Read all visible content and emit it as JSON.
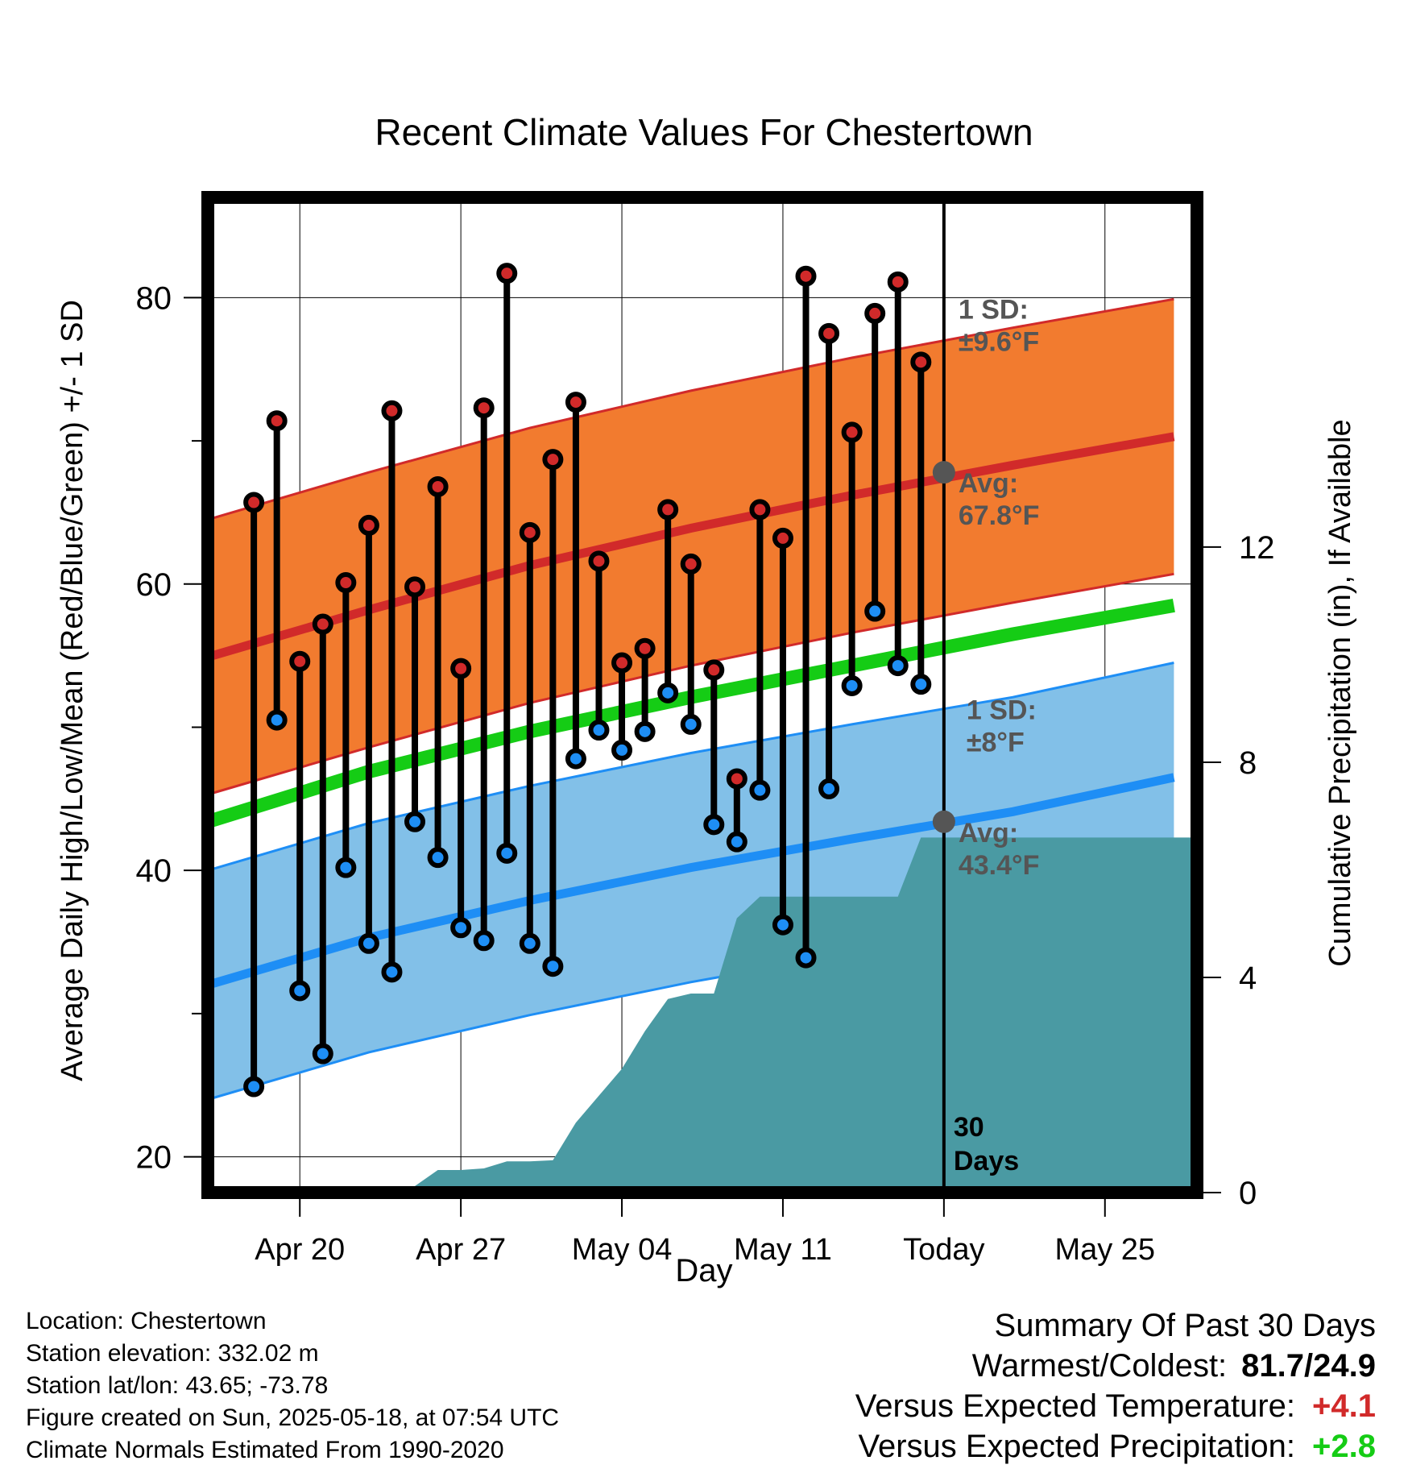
{
  "chart_data": {
    "type": "line",
    "title": "Recent Climate Values For Chestertown",
    "xlabel": "Day",
    "ylabel": "Average Daily High/Low/Mean (Red/Blue/Green) +/- 1 SD",
    "y2label": "Cumulative Precipitation (in), If Available",
    "ylim": [
      17.5,
      87
    ],
    "y2lim": [
      0,
      18.5
    ],
    "yticks": [
      20,
      40,
      60,
      80
    ],
    "y2ticks": [
      0,
      4,
      8,
      12
    ],
    "xlim": [
      "2025-04-16",
      "2025-05-29"
    ],
    "xticks": [
      {
        "date": "2025-04-20",
        "label": "Apr 20"
      },
      {
        "date": "2025-04-27",
        "label": "Apr 27"
      },
      {
        "date": "2025-05-04",
        "label": "May 04"
      },
      {
        "date": "2025-05-11",
        "label": "May 11"
      },
      {
        "date": "2025-05-18",
        "label": "Today"
      },
      {
        "date": "2025-05-25",
        "label": "May 25"
      }
    ],
    "grid": true,
    "today": "2025-05-18",
    "today_label": [
      "30",
      "Days"
    ],
    "colors": {
      "high_band": "#f27b2f",
      "high_avg": "#d12a2a",
      "low_band": "#82c0e8",
      "low_avg": "#1e8ef5",
      "mean_avg": "#15cc15",
      "precip": "#4a9aa3",
      "high_dot": "#d12a2a",
      "low_dot": "#1e8ef5",
      "marker": "#555555"
    },
    "normals": {
      "dates": [
        "2025-04-16",
        "2025-04-23",
        "2025-04-30",
        "2025-05-07",
        "2025-05-14",
        "2025-05-21",
        "2025-05-28"
      ],
      "high_avg": [
        54.9,
        58.2,
        61.3,
        63.9,
        66.2,
        68.3,
        70.3
      ],
      "low_avg": [
        32.0,
        35.3,
        37.9,
        40.2,
        42.2,
        44.1,
        46.5
      ],
      "mean_avg": [
        43.4,
        46.9,
        49.7,
        52.1,
        54.3,
        56.5,
        58.5
      ],
      "high_sd": 9.6,
      "low_sd": 8.0
    },
    "annotations": [
      {
        "lines": [
          "1 SD:",
          "±9.6°F"
        ],
        "series": "high"
      },
      {
        "lines": [
          "Avg:",
          "67.8°F"
        ],
        "series": "high"
      },
      {
        "lines": [
          "1 SD:",
          "±8°F"
        ],
        "series": "low"
      },
      {
        "lines": [
          "Avg:",
          "43.4°F"
        ],
        "series": "low"
      }
    ],
    "today_high_avg": 67.8,
    "today_low_avg": 43.4,
    "daily": {
      "dates": [
        "2025-04-18",
        "2025-04-19",
        "2025-04-20",
        "2025-04-21",
        "2025-04-22",
        "2025-04-23",
        "2025-04-24",
        "2025-04-25",
        "2025-04-26",
        "2025-04-27",
        "2025-04-28",
        "2025-04-29",
        "2025-04-30",
        "2025-05-01",
        "2025-05-02",
        "2025-05-03",
        "2025-05-04",
        "2025-05-05",
        "2025-05-06",
        "2025-05-07",
        "2025-05-08",
        "2025-05-09",
        "2025-05-10",
        "2025-05-11",
        "2025-05-12",
        "2025-05-13",
        "2025-05-14",
        "2025-05-15",
        "2025-05-16",
        "2025-05-17"
      ],
      "highs": [
        65.7,
        71.4,
        54.6,
        57.2,
        60.1,
        64.1,
        72.1,
        59.8,
        66.8,
        54.1,
        72.3,
        81.7,
        63.6,
        68.7,
        72.7,
        61.6,
        54.5,
        55.5,
        65.2,
        61.4,
        54.0,
        46.4,
        65.2,
        63.2,
        81.5,
        77.5,
        70.6,
        78.9,
        81.1,
        75.5
      ],
      "lows": [
        24.9,
        50.5,
        31.6,
        27.2,
        40.2,
        34.9,
        32.9,
        43.4,
        40.9,
        36.0,
        35.1,
        41.2,
        34.9,
        33.3,
        47.8,
        49.8,
        48.4,
        49.7,
        52.4,
        50.2,
        43.2,
        42.0,
        45.6,
        36.2,
        33.9,
        45.7,
        52.9,
        58.1,
        54.3,
        53.0
      ]
    },
    "precip": {
      "dates": [
        "2025-04-18",
        "2025-04-19",
        "2025-04-20",
        "2025-04-21",
        "2025-04-22",
        "2025-04-23",
        "2025-04-24",
        "2025-04-25",
        "2025-04-26",
        "2025-04-27",
        "2025-04-28",
        "2025-04-29",
        "2025-04-30",
        "2025-05-01",
        "2025-05-02",
        "2025-05-03",
        "2025-05-04",
        "2025-05-05",
        "2025-05-06",
        "2025-05-07",
        "2025-05-08",
        "2025-05-09",
        "2025-05-10",
        "2025-05-11",
        "2025-05-12",
        "2025-05-13",
        "2025-05-14",
        "2025-05-15",
        "2025-05-16",
        "2025-05-17",
        "2025-05-18",
        "2025-05-29"
      ],
      "cumulative": [
        0.0,
        0.0,
        0.0,
        0.1,
        0.1,
        0.1,
        0.12,
        0.12,
        0.42,
        0.42,
        0.45,
        0.58,
        0.58,
        0.6,
        1.3,
        1.8,
        2.3,
        3.0,
        3.6,
        3.7,
        3.7,
        5.1,
        5.5,
        5.5,
        5.5,
        5.5,
        5.5,
        5.5,
        5.5,
        6.6,
        6.6,
        6.6
      ]
    }
  },
  "info": {
    "location": "Location: Chestertown",
    "elevation": "Station elevation: 332.02 m",
    "latlon": "Station lat/lon: 43.65; -73.78",
    "created": "Figure created on Sun, 2025-05-18, at 07:54 UTC",
    "normals": "Climate Normals Estimated From 1990-2020"
  },
  "summary": {
    "title": "Summary Of Past 30 Days",
    "warm_cold_label": "Warmest/Coldest:",
    "warm_cold_value": "81.7/24.9",
    "temp_label": "Versus Expected Temperature:",
    "temp_value": "+4.1",
    "temp_color": "#d12a2a",
    "precip_label": "Versus Expected Precipitation:",
    "precip_value": "+2.8",
    "precip_color": "#15cc15"
  }
}
